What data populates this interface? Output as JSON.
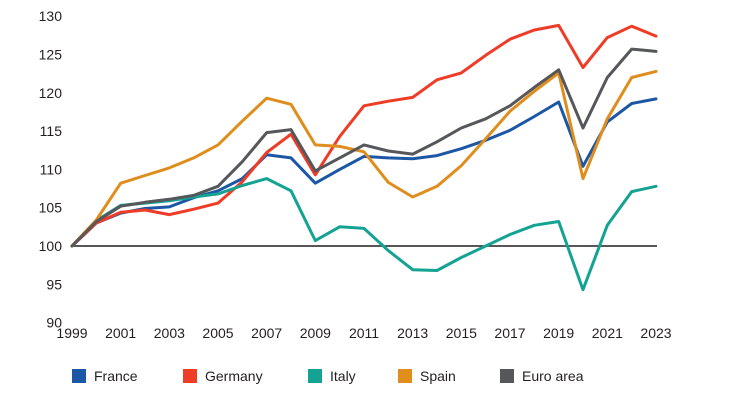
{
  "chart_data": {
    "type": "line",
    "title": "",
    "xlabel": "",
    "ylabel": "",
    "x": [
      1999,
      2000,
      2001,
      2002,
      2003,
      2004,
      2005,
      2006,
      2007,
      2008,
      2009,
      2010,
      2011,
      2012,
      2013,
      2014,
      2015,
      2016,
      2017,
      2018,
      2019,
      2020,
      2021,
      2022,
      2023
    ],
    "x_tick_labels": [
      "1999",
      "2001",
      "2003",
      "2005",
      "2007",
      "2009",
      "2011",
      "2013",
      "2015",
      "2017",
      "2019",
      "2021",
      "2023"
    ],
    "x_tick_years": [
      1999,
      2001,
      2003,
      2005,
      2007,
      2009,
      2011,
      2013,
      2015,
      2017,
      2019,
      2021,
      2023
    ],
    "y_ticks": [
      90,
      95,
      100,
      105,
      110,
      115,
      120,
      125,
      130
    ],
    "ylim": [
      90,
      130
    ],
    "baseline": 100,
    "grid": false,
    "legend_position": "bottom",
    "axis_color": "#231f20",
    "series": [
      {
        "name": "France",
        "color": "#1c57a5",
        "values": [
          100,
          103.0,
          104.3,
          104.9,
          105.1,
          106.3,
          107.2,
          108.8,
          111.9,
          111.5,
          108.2,
          110.0,
          111.7,
          111.5,
          111.4,
          111.8,
          112.7,
          113.8,
          115.1,
          116.9,
          118.8,
          110.4,
          116.2,
          118.6,
          119.2
        ]
      },
      {
        "name": "Germany",
        "color": "#ee3c26",
        "values": [
          100,
          103.0,
          104.4,
          104.7,
          104.1,
          104.8,
          105.6,
          108.4,
          112.2,
          114.6,
          109.3,
          114.3,
          118.3,
          118.9,
          119.4,
          121.7,
          122.6,
          124.9,
          127.0,
          128.2,
          128.8,
          123.3,
          127.2,
          128.7,
          127.4
        ]
      },
      {
        "name": "Italy",
        "color": "#14a392",
        "values": [
          100,
          103.3,
          105.3,
          105.6,
          105.9,
          106.4,
          106.8,
          107.9,
          108.8,
          107.2,
          100.7,
          102.5,
          102.3,
          99.4,
          96.9,
          96.8,
          98.5,
          100.0,
          101.5,
          102.7,
          103.2,
          94.3,
          102.7,
          107.1,
          107.8
        ]
      },
      {
        "name": "Spain",
        "color": "#df8e1d",
        "values": [
          100,
          103.4,
          108.2,
          109.2,
          110.2,
          111.5,
          113.2,
          116.3,
          119.3,
          118.5,
          113.2,
          113.0,
          112.3,
          108.3,
          106.4,
          107.8,
          110.5,
          114.0,
          117.6,
          120.2,
          122.6,
          108.8,
          116.6,
          122.0,
          122.8
        ]
      },
      {
        "name": "Euro area",
        "color": "#56575b",
        "values": [
          100,
          103.2,
          105.2,
          105.7,
          106.1,
          106.6,
          107.8,
          111.0,
          114.8,
          115.2,
          109.8,
          111.5,
          113.2,
          112.4,
          112.0,
          113.6,
          115.4,
          116.6,
          118.3,
          120.7,
          123.0,
          115.4,
          122.0,
          125.7,
          125.4
        ]
      }
    ]
  },
  "legend": {
    "items": [
      "France",
      "Germany",
      "Italy",
      "Spain",
      "Euro area"
    ]
  }
}
